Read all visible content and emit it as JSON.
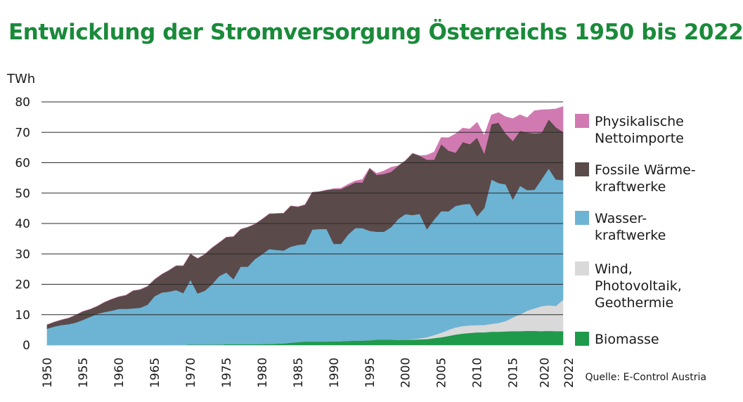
{
  "chart_data": {
    "type": "area",
    "stacked": true,
    "title": "Entwicklung der Stromversorgung Österreichs 1950 bis 2022",
    "ylabel": "TWh",
    "ylim": [
      0,
      80
    ],
    "yticks": [
      "0",
      "10",
      "20",
      "30",
      "40",
      "50",
      "60",
      "70",
      "80"
    ],
    "xlim": [
      1950,
      2022
    ],
    "xticks": [
      "1950",
      "1955",
      "1960",
      "1965",
      "1970",
      "1975",
      "1980",
      "1985",
      "1990",
      "1995",
      "2000",
      "2005",
      "2010",
      "2015",
      "2020",
      "2022"
    ],
    "grid": "horizontal",
    "legend_position": "right",
    "x": [
      1950,
      1951,
      1952,
      1953,
      1954,
      1955,
      1956,
      1957,
      1958,
      1959,
      1960,
      1961,
      1962,
      1963,
      1964,
      1965,
      1966,
      1967,
      1968,
      1969,
      1970,
      1971,
      1972,
      1973,
      1974,
      1975,
      1976,
      1977,
      1978,
      1979,
      1980,
      1981,
      1982,
      1983,
      1984,
      1985,
      1986,
      1987,
      1988,
      1989,
      1990,
      1991,
      1992,
      1993,
      1994,
      1995,
      1996,
      1997,
      1998,
      1999,
      2000,
      2001,
      2002,
      2003,
      2004,
      2005,
      2006,
      2007,
      2008,
      2009,
      2010,
      2011,
      2012,
      2013,
      2014,
      2015,
      2016,
      2017,
      2018,
      2019,
      2020,
      2021,
      2022
    ],
    "series": [
      {
        "name": "Biomasse",
        "color": "#1f9a4b",
        "values": [
          0.1,
          0.1,
          0.1,
          0.1,
          0.1,
          0.1,
          0.1,
          0.1,
          0.1,
          0.1,
          0.1,
          0.1,
          0.1,
          0.1,
          0.1,
          0.1,
          0.1,
          0.1,
          0.1,
          0.1,
          0.2,
          0.2,
          0.2,
          0.2,
          0.2,
          0.3,
          0.3,
          0.3,
          0.3,
          0.3,
          0.4,
          0.4,
          0.5,
          0.6,
          0.8,
          1.0,
          1.2,
          1.2,
          1.2,
          1.2,
          1.3,
          1.3,
          1.4,
          1.5,
          1.5,
          1.6,
          1.8,
          1.8,
          1.8,
          1.7,
          1.8,
          1.8,
          1.9,
          2.0,
          2.3,
          2.6,
          3.0,
          3.5,
          3.8,
          4.0,
          4.2,
          4.2,
          4.4,
          4.4,
          4.5,
          4.6,
          4.6,
          4.7,
          4.7,
          4.6,
          4.7,
          4.6,
          4.6
        ]
      },
      {
        "name": "Wind, Photovoltaik, Geothermie",
        "color": "#d9d9d9",
        "values": [
          0,
          0,
          0,
          0,
          0,
          0,
          0,
          0,
          0,
          0,
          0,
          0,
          0,
          0,
          0,
          0,
          0,
          0,
          0,
          0,
          0,
          0,
          0,
          0,
          0,
          0,
          0,
          0,
          0,
          0,
          0,
          0,
          0,
          0,
          0,
          0,
          0,
          0,
          0,
          0,
          0,
          0,
          0,
          0,
          0,
          0,
          0,
          0,
          0,
          0,
          0.1,
          0.2,
          0.3,
          0.6,
          1.0,
          1.5,
          2.0,
          2.3,
          2.5,
          2.5,
          2.4,
          2.4,
          2.6,
          2.9,
          3.4,
          4.5,
          5.5,
          6.6,
          7.4,
          8.2,
          8.4,
          8.3,
          10.3
        ]
      },
      {
        "name": "Wasserkraftwerke",
        "color": "#6db3d3",
        "values": [
          5.3,
          6.0,
          6.5,
          6.8,
          7.3,
          8.2,
          9.2,
          10.2,
          10.8,
          11.2,
          11.8,
          11.8,
          12.0,
          12.2,
          13.2,
          16.0,
          17.2,
          17.5,
          18.0,
          17.0,
          21.3,
          16.8,
          17.7,
          19.8,
          22.5,
          23.6,
          21.4,
          25.5,
          25.5,
          28.0,
          29.5,
          31.2,
          30.8,
          30.5,
          31.6,
          32.0,
          32.0,
          36.8,
          37.0,
          37.0,
          32.0,
          32.0,
          35.0,
          37.0,
          37.0,
          36.0,
          35.5,
          35.5,
          37.0,
          39.8,
          41.2,
          40.8,
          41.0,
          35.5,
          38.0,
          40.0,
          39.0,
          40.0,
          40.0,
          40.0,
          35.8,
          38.5,
          47.5,
          46.0,
          45.0,
          38.8,
          42.3,
          39.7,
          39.0,
          41.8,
          45.0,
          41.6,
          39.4
        ]
      },
      {
        "name": "Fossile Wärmekraftwerke",
        "color": "#5a4a49",
        "values": [
          1.3,
          1.5,
          1.7,
          2.0,
          2.5,
          2.8,
          2.5,
          2.5,
          3.2,
          3.8,
          4.0,
          4.5,
          5.8,
          6.0,
          6.0,
          5.5,
          6.0,
          7.0,
          8.0,
          9.0,
          8.5,
          11.5,
          12.0,
          12.0,
          11.0,
          11.6,
          14.0,
          12.3,
          13.0,
          11.5,
          11.5,
          11.6,
          12.0,
          12.3,
          13.4,
          12.5,
          13.0,
          12.3,
          12.3,
          12.8,
          18.0,
          18.0,
          16.0,
          15.0,
          15.0,
          20.6,
          18.7,
          19.0,
          18.2,
          17.5,
          17.6,
          20.3,
          19.1,
          22.9,
          19.7,
          22.0,
          20.0,
          17.5,
          20.5,
          19.6,
          25.9,
          17.9,
          18.2,
          19.9,
          16.7,
          19.3,
          18.1,
          18.9,
          18.5,
          15.2,
          16.2,
          17.2,
          15.8
        ]
      },
      {
        "name": "Physikalische Nettoimporte",
        "color": "#d17ab1",
        "values": [
          0,
          0,
          0,
          0,
          0,
          0,
          0,
          0,
          0,
          0,
          0,
          0,
          0,
          0,
          0,
          0,
          0,
          0,
          0,
          0,
          0,
          0,
          0,
          0,
          0,
          0,
          0,
          0,
          0,
          0,
          0,
          0,
          0,
          0,
          0,
          0,
          0,
          0,
          0,
          0,
          0.2,
          0.3,
          0.5,
          0.5,
          1.0,
          0,
          0.5,
          1.0,
          1.5,
          0,
          0,
          0,
          0,
          1.5,
          2.5,
          2.2,
          4.2,
          6.2,
          4.6,
          5.0,
          5.0,
          6.0,
          3.0,
          3.3,
          5.5,
          7.3,
          5.3,
          4.9,
          7.5,
          7.6,
          3.2,
          6.0,
          8.4
        ]
      }
    ],
    "legend": [
      {
        "lines": [
          "Physikalische",
          "Nettoimporte"
        ],
        "color": "#d17ab1"
      },
      {
        "lines": [
          "Fossile Wärme-",
          "kraftwerke"
        ],
        "color": "#5a4a49"
      },
      {
        "lines": [
          " Wasser-",
          " kraftwerke"
        ],
        "color": "#6db3d3"
      },
      {
        "lines": [
          "Wind,",
          "Photovoltaik,",
          "Geothermie"
        ],
        "color": "#d9d9d9"
      },
      {
        "lines": [
          "Biomasse"
        ],
        "color": "#1f9a4b"
      }
    ],
    "source": "Quelle: E-Control Austria"
  }
}
